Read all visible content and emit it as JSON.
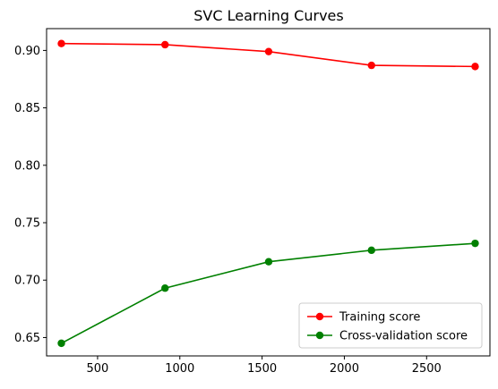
{
  "chart_data": {
    "type": "line",
    "title": "SVC Learning Curves",
    "xlabel": "",
    "ylabel": "",
    "x": [
      280,
      910,
      1540,
      2165,
      2795
    ],
    "xlim": [
      190,
      2885
    ],
    "ylim": [
      0.634,
      0.919
    ],
    "xticks": [
      500,
      1000,
      1500,
      2000,
      2500
    ],
    "yticks": [
      0.65,
      0.7,
      0.75,
      0.8,
      0.85,
      0.9
    ],
    "grid": false,
    "legend_position": "lower-right",
    "series": [
      {
        "name": "Training score",
        "color": "#ff0000",
        "values": [
          0.906,
          0.905,
          0.899,
          0.887,
          0.886
        ]
      },
      {
        "name": "Cross-validation score",
        "color": "#008000",
        "values": [
          0.645,
          0.693,
          0.716,
          0.726,
          0.732
        ]
      }
    ]
  }
}
